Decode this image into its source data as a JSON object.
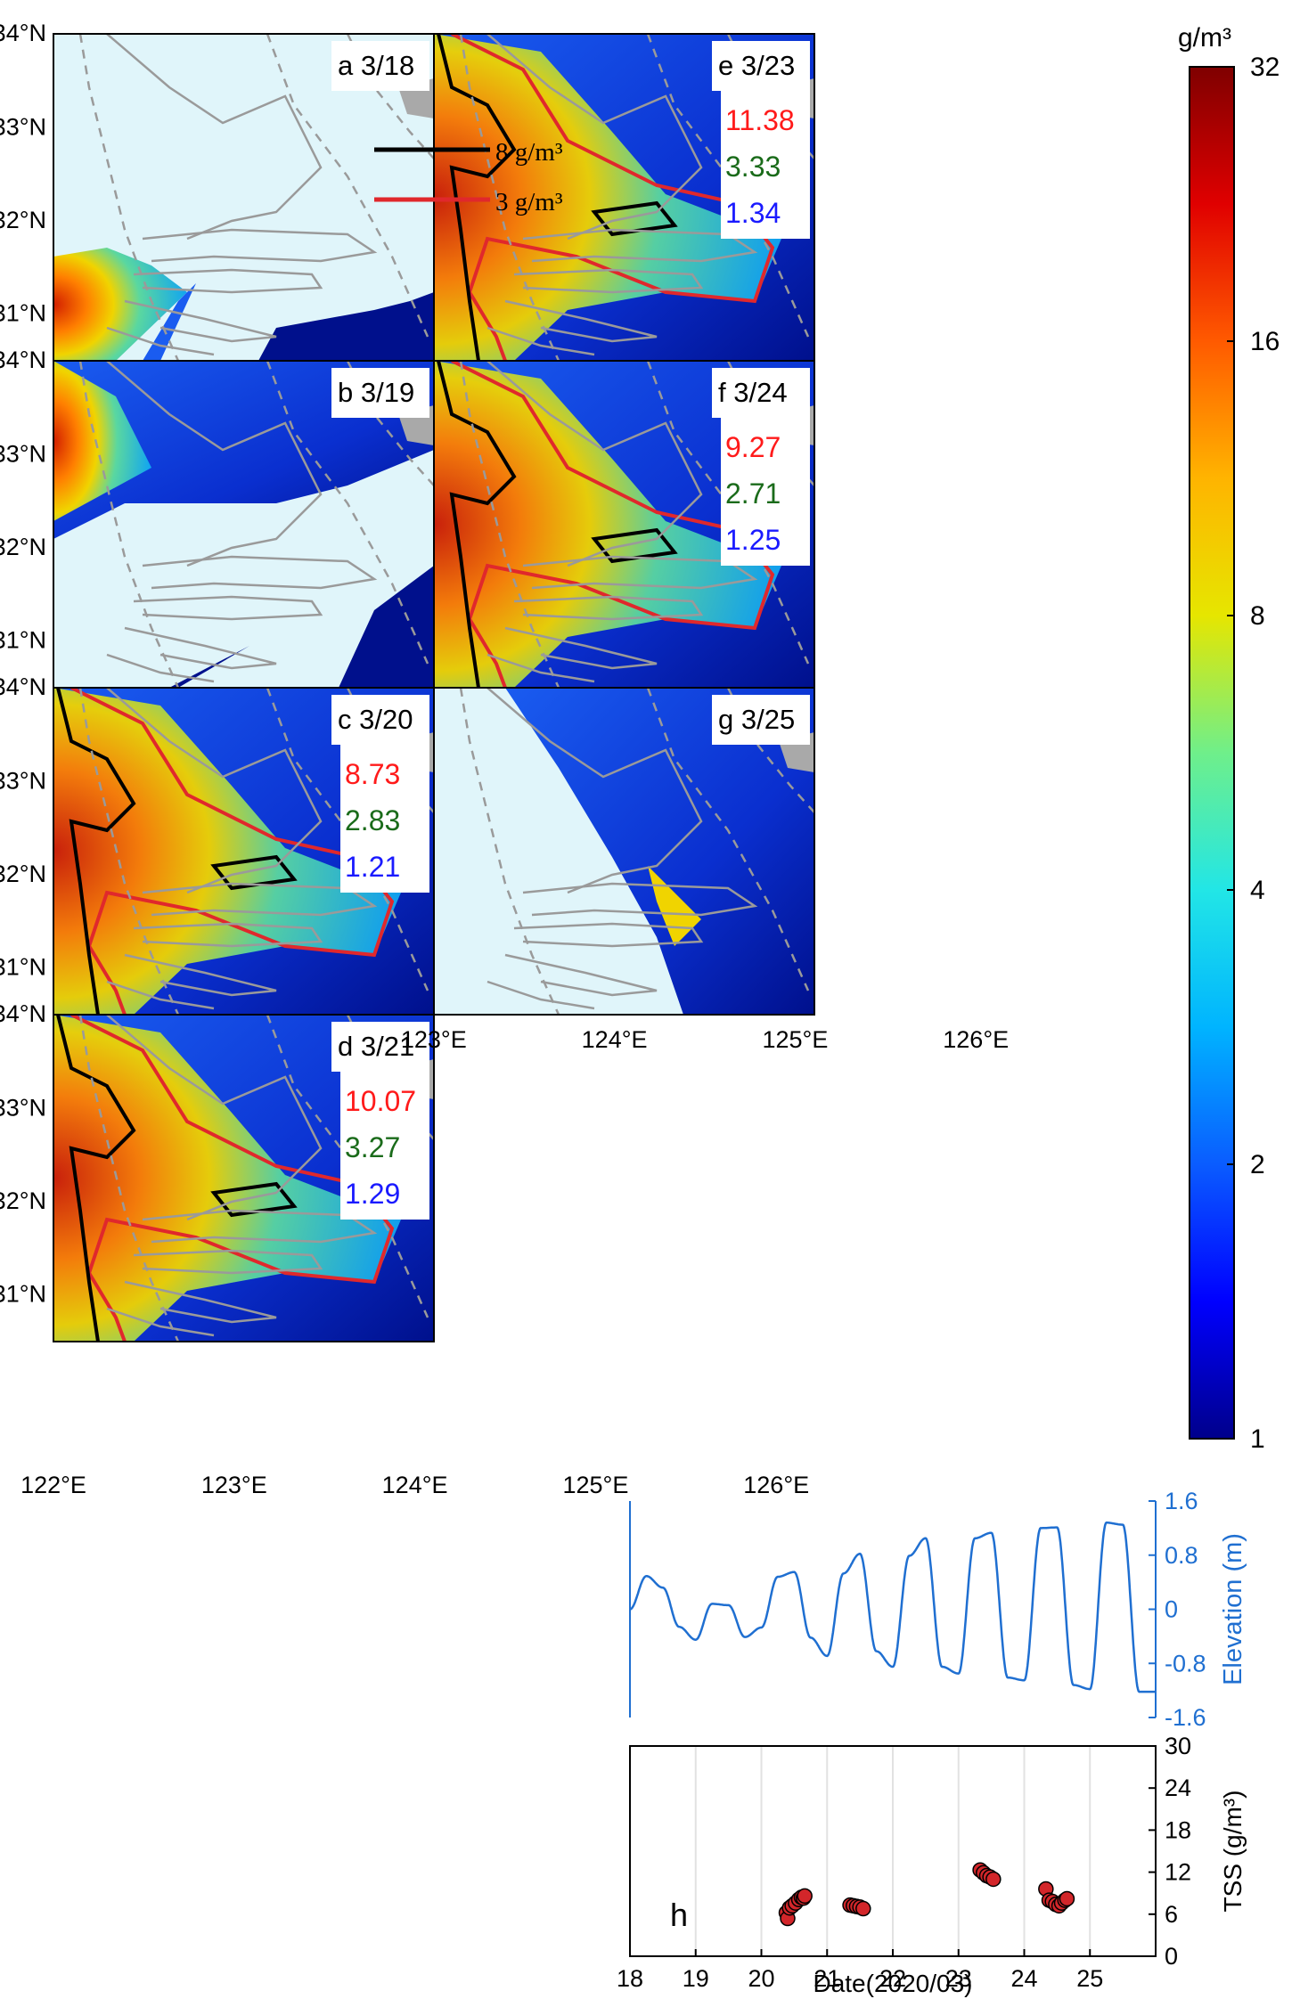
{
  "panels": [
    {
      "id": "a",
      "date": "3/18",
      "stats": []
    },
    {
      "id": "b",
      "date": "3/19",
      "stats": []
    },
    {
      "id": "c",
      "date": "3/20",
      "stats": [
        "8.73",
        "2.83",
        "1.21"
      ]
    },
    {
      "id": "d",
      "date": "3/21",
      "stats": [
        "10.07",
        "3.27",
        "1.29"
      ]
    },
    {
      "id": "e",
      "date": "3/23",
      "stats": [
        "11.38",
        "3.33",
        "1.34"
      ]
    },
    {
      "id": "f",
      "date": "3/24",
      "stats": [
        "9.27",
        "2.71",
        "1.25"
      ]
    },
    {
      "id": "g",
      "date": "3/25",
      "stats": []
    }
  ],
  "stat_colors": [
    "#ff1a1a",
    "#1a6b1a",
    "#1a1aff"
  ],
  "contour_legend": [
    {
      "label": "8 g/m³",
      "color": "#000000"
    },
    {
      "label": "3 g/m³",
      "color": "#e0282c"
    }
  ],
  "map_axes": {
    "lat_ticks": [
      "31°N",
      "32°N",
      "33°N",
      "34°N"
    ],
    "lon_ticks": [
      "122°E",
      "123°E",
      "124°E",
      "125°E",
      "126°E"
    ]
  },
  "colorbar": {
    "unit": "g/m³",
    "ticks": [
      "1",
      "2",
      "4",
      "8",
      "16",
      "32"
    ],
    "colors": [
      "#00008b",
      "#0000ff",
      "#0a5cff",
      "#00b4ff",
      "#22e6e6",
      "#6fef8a",
      "#e6e600",
      "#ffb400",
      "#ff5a00",
      "#e00000",
      "#7f0000"
    ]
  },
  "colors": {
    "ocean_dark": "#00108c",
    "no_data": "#e0f5fa",
    "land": "#a9a9a9",
    "contour_8": "#000000",
    "contour_3": "#e0282c",
    "isobath": "#9a9a9a",
    "elevation_line": "#1f6fd1",
    "tss_point": "#d3262a"
  },
  "chart_data": [
    {
      "type": "line",
      "ylabel": "Elevation (m)",
      "ylim": [
        -1.6,
        1.6
      ],
      "yticks": [
        "1.6",
        "0.8",
        "0",
        "-0.8",
        "-1.6"
      ],
      "xlim": [
        18,
        26
      ],
      "x_start": 18.0,
      "step": 0.25,
      "values": [
        0.0,
        0.49,
        0.32,
        -0.26,
        -0.45,
        0.08,
        0.06,
        -0.41,
        -0.27,
        0.48,
        0.55,
        -0.42,
        -0.69,
        0.53,
        0.82,
        -0.62,
        -0.85,
        0.79,
        1.05,
        -0.85,
        -0.95,
        1.05,
        1.13,
        -1.01,
        -1.05,
        1.2,
        1.21,
        -1.12,
        -1.18,
        1.28,
        1.25,
        -1.22
      ]
    },
    {
      "type": "scatter",
      "xlabel": "Date(2020/03)",
      "ylabel": "TSS (g/m³)",
      "panel_label": "h",
      "xlim": [
        18,
        26
      ],
      "ylim": [
        0,
        30
      ],
      "xticks": [
        "18",
        "19",
        "20",
        "21",
        "22",
        "23",
        "24",
        "25"
      ],
      "yticks": [
        "0",
        "6",
        "12",
        "18",
        "24",
        "30"
      ],
      "points": [
        [
          20.38,
          6.2
        ],
        [
          20.4,
          5.4
        ],
        [
          20.43,
          6.9
        ],
        [
          20.47,
          7.2
        ],
        [
          20.52,
          7.6
        ],
        [
          20.57,
          8.1
        ],
        [
          20.61,
          8.4
        ],
        [
          20.64,
          8.3
        ],
        [
          20.66,
          8.6
        ],
        [
          21.35,
          7.3
        ],
        [
          21.4,
          7.2
        ],
        [
          21.45,
          7.1
        ],
        [
          21.5,
          7.0
        ],
        [
          21.55,
          6.8
        ],
        [
          23.33,
          12.3
        ],
        [
          23.38,
          11.9
        ],
        [
          23.43,
          11.5
        ],
        [
          23.48,
          11.3
        ],
        [
          23.53,
          11.0
        ],
        [
          24.33,
          9.6
        ],
        [
          24.38,
          8.0
        ],
        [
          24.43,
          7.8
        ],
        [
          24.48,
          7.4
        ],
        [
          24.53,
          7.2
        ],
        [
          24.57,
          7.6
        ],
        [
          24.62,
          8.0
        ],
        [
          24.65,
          8.2
        ]
      ]
    }
  ]
}
